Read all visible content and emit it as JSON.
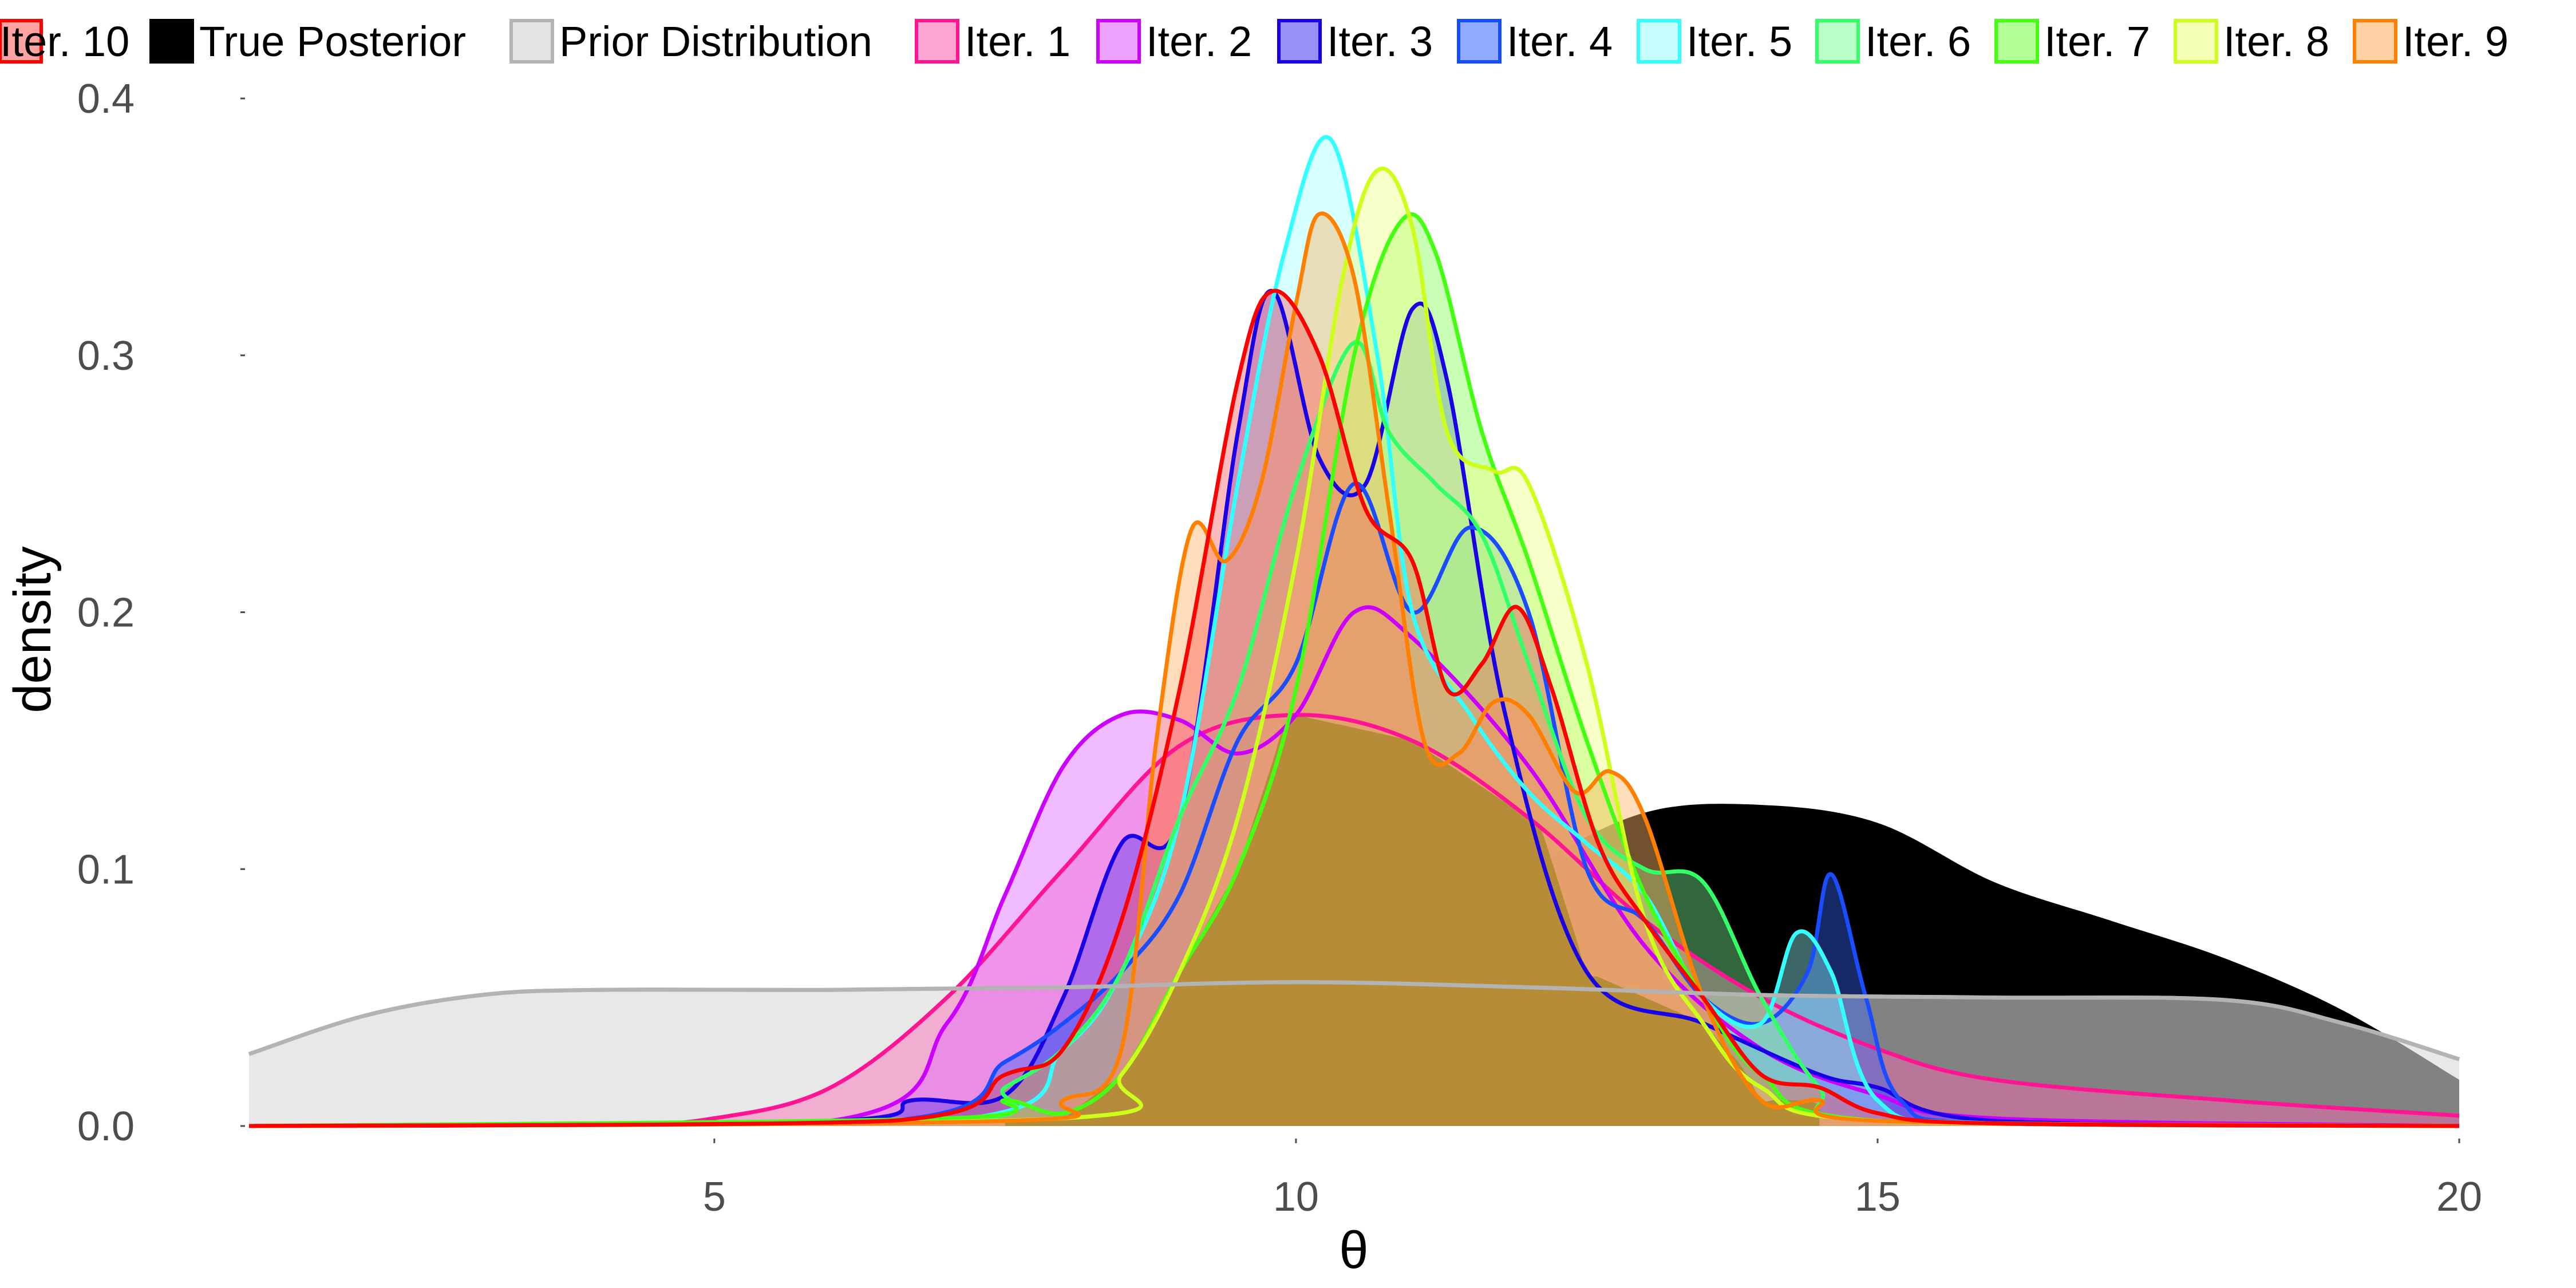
{
  "chart_data": {
    "type": "area",
    "xlabel": "θ",
    "ylabel": "density",
    "xlim": [
      1,
      20
    ],
    "ylim": [
      0,
      0.4
    ],
    "x_ticks": [
      5,
      10,
      15,
      20
    ],
    "x_tick_labels": [
      "5",
      "10",
      "15",
      "20"
    ],
    "y_ticks": [
      0,
      0.1,
      0.2,
      0.3,
      0.4
    ],
    "y_tick_labels": [
      "0.0",
      "0.1",
      "0.2",
      "0.3",
      "0.4"
    ],
    "grid": false,
    "legend_position": "top",
    "series": [
      {
        "name": "True Posterior",
        "color": "#000000",
        "fill": "#000000",
        "fill_opacity": 1.0,
        "x": [
          1,
          6,
          8,
          9,
          10,
          11,
          12,
          13,
          14,
          15,
          16,
          17,
          18,
          19,
          20
        ],
        "y": [
          0,
          0,
          0.005,
          0.025,
          0.045,
          0.07,
          0.1,
          0.122,
          0.125,
          0.118,
          0.095,
          0.08,
          0.065,
          0.045,
          0.018
        ]
      },
      {
        "name": "Prior Distribution",
        "color": "#b3b3b3",
        "fill": "#d9d9d9",
        "fill_opacity": 0.6,
        "x": [
          1,
          2,
          3,
          4,
          6,
          8,
          10,
          12,
          14,
          16,
          18,
          19,
          20
        ],
        "y": [
          0.028,
          0.043,
          0.051,
          0.053,
          0.053,
          0.054,
          0.056,
          0.054,
          0.051,
          0.05,
          0.049,
          0.04,
          0.026
        ]
      },
      {
        "name": "Iter. 1",
        "color": "#ff1493",
        "fill": "#ff69b4",
        "fill_opacity": 0.45,
        "x": [
          1,
          4,
          5,
          6,
          7,
          8,
          9,
          10,
          11,
          12,
          13,
          14,
          15,
          16,
          18,
          20
        ],
        "y": [
          0,
          0.0005,
          0.003,
          0.015,
          0.05,
          0.1,
          0.148,
          0.16,
          0.15,
          0.12,
          0.08,
          0.05,
          0.03,
          0.018,
          0.01,
          0.004
        ]
      },
      {
        "name": "Iter. 2",
        "color": "#cc00ff",
        "fill": "#dd66ff",
        "fill_opacity": 0.45,
        "x": [
          1,
          6,
          7,
          7.5,
          8,
          8.5,
          9,
          9.5,
          10,
          10.5,
          11,
          12,
          13,
          14,
          15,
          16,
          20
        ],
        "y": [
          0,
          0.002,
          0.04,
          0.09,
          0.14,
          0.16,
          0.158,
          0.145,
          0.16,
          0.2,
          0.19,
          0.14,
          0.07,
          0.03,
          0.012,
          0.003,
          0
        ]
      },
      {
        "name": "Iter. 3",
        "color": "#1a00e6",
        "fill": "#3322ee",
        "fill_opacity": 0.35,
        "x": [
          1,
          6,
          6.7,
          7.5,
          8,
          8.5,
          9,
          9.5,
          9.8,
          10.2,
          10.6,
          11,
          11.3,
          11.8,
          12.5,
          13.5,
          14.5,
          15,
          16,
          20
        ],
        "y": [
          0,
          0.002,
          0.01,
          0.012,
          0.05,
          0.11,
          0.12,
          0.27,
          0.325,
          0.26,
          0.25,
          0.318,
          0.29,
          0.16,
          0.06,
          0.04,
          0.02,
          0.015,
          0.002,
          0
        ]
      },
      {
        "name": "Iter. 4",
        "color": "#1a4dff",
        "fill": "#3366ff",
        "fill_opacity": 0.4,
        "x": [
          1,
          6.5,
          7.5,
          8,
          8.5,
          9,
          9.5,
          10,
          10.5,
          11,
          11.5,
          12,
          12.5,
          13,
          13.5,
          14,
          14.4,
          14.6,
          14.9,
          15.2,
          16,
          20
        ],
        "y": [
          0,
          0.002,
          0.025,
          0.04,
          0.06,
          0.09,
          0.15,
          0.18,
          0.25,
          0.2,
          0.233,
          0.2,
          0.1,
          0.08,
          0.05,
          0.04,
          0.06,
          0.098,
          0.05,
          0.01,
          0.001,
          0
        ]
      },
      {
        "name": "Iter. 5",
        "color": "#33ffff",
        "fill": "#99ffff",
        "fill_opacity": 0.4,
        "x": [
          1,
          7,
          8,
          8.5,
          9,
          9.5,
          9.9,
          10.3,
          10.7,
          11,
          11.5,
          12,
          12.5,
          13,
          13.5,
          14,
          14.3,
          14.6,
          15,
          16,
          20
        ],
        "y": [
          0,
          0.002,
          0.03,
          0.06,
          0.12,
          0.25,
          0.34,
          0.384,
          0.3,
          0.2,
          0.16,
          0.13,
          0.11,
          0.09,
          0.05,
          0.04,
          0.075,
          0.06,
          0.01,
          0.001,
          0
        ]
      },
      {
        "name": "Iter. 6",
        "color": "#33ff66",
        "fill": "#80ff99",
        "fill_opacity": 0.4,
        "x": [
          1,
          7,
          7.5,
          8,
          8.5,
          9,
          9.5,
          10,
          10.5,
          10.8,
          11.2,
          11.6,
          12,
          12.5,
          13,
          13.5,
          14,
          14.5,
          15,
          20
        ],
        "y": [
          0,
          0.002,
          0.015,
          0.03,
          0.06,
          0.12,
          0.17,
          0.25,
          0.305,
          0.27,
          0.25,
          0.23,
          0.18,
          0.12,
          0.1,
          0.095,
          0.05,
          0.015,
          0.002,
          0
        ]
      },
      {
        "name": "Iter. 7",
        "color": "#44ff11",
        "fill": "#77ff44",
        "fill_opacity": 0.4,
        "x": [
          1,
          7,
          7.5,
          8,
          8.5,
          9,
          9.5,
          10,
          10.5,
          10.9,
          11.2,
          11.6,
          12,
          12.5,
          13,
          13.5,
          14,
          15,
          20
        ],
        "y": [
          0,
          0.003,
          0.01,
          0.005,
          0.02,
          0.06,
          0.1,
          0.17,
          0.3,
          0.352,
          0.34,
          0.27,
          0.22,
          0.15,
          0.09,
          0.05,
          0.02,
          0.002,
          0
        ]
      },
      {
        "name": "Iter. 8",
        "color": "#ccff1a",
        "fill": "#eeff88",
        "fill_opacity": 0.45,
        "x": [
          1,
          8,
          8.5,
          9,
          9.5,
          10,
          10.4,
          10.7,
          11,
          11.3,
          11.7,
          12,
          12.5,
          13,
          13.5,
          14,
          15,
          20
        ],
        "y": [
          0,
          0.003,
          0.02,
          0.06,
          0.12,
          0.22,
          0.33,
          0.372,
          0.35,
          0.27,
          0.255,
          0.25,
          0.18,
          0.08,
          0.04,
          0.015,
          0.002,
          0
        ]
      },
      {
        "name": "Iter. 9",
        "color": "#ff7f00",
        "fill": "#ffb366",
        "fill_opacity": 0.45,
        "x": [
          1,
          7.5,
          8,
          8.5,
          8.8,
          9.1,
          9.4,
          9.7,
          10,
          10.2,
          10.5,
          10.8,
          11.1,
          11.4,
          11.7,
          12,
          12.4,
          12.7,
          13,
          13.5,
          14,
          14.5,
          15,
          20
        ],
        "y": [
          0,
          0.002,
          0.01,
          0.03,
          0.15,
          0.232,
          0.22,
          0.25,
          0.32,
          0.355,
          0.33,
          0.24,
          0.15,
          0.145,
          0.165,
          0.16,
          0.13,
          0.138,
          0.12,
          0.05,
          0.01,
          0.01,
          0.002,
          0
        ]
      },
      {
        "name": "Iter. 10",
        "color": "#ff0000",
        "fill": "#ff5555",
        "fill_opacity": 0.4,
        "x": [
          1,
          6.5,
          7.5,
          8,
          8.5,
          9,
          9.5,
          9.8,
          10.2,
          10.6,
          11,
          11.3,
          11.6,
          11.9,
          12.2,
          12.6,
          13,
          13.5,
          14,
          14.5,
          15,
          16,
          20
        ],
        "y": [
          0,
          0.002,
          0.02,
          0.03,
          0.08,
          0.17,
          0.29,
          0.325,
          0.3,
          0.24,
          0.22,
          0.17,
          0.18,
          0.202,
          0.17,
          0.11,
          0.08,
          0.05,
          0.02,
          0.015,
          0.005,
          0.001,
          0
        ]
      }
    ],
    "overlap_fill_color": "#b08a32"
  }
}
